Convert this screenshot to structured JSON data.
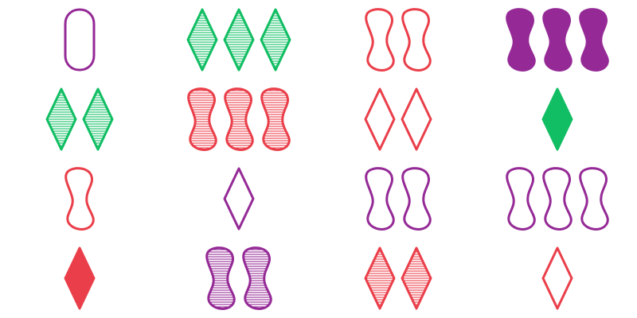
{
  "game": "set-card-grid",
  "colors": {
    "purple": "#952A96",
    "green": "#11BE63",
    "red": "#EA3F4A"
  },
  "cards": [
    {
      "count": 1,
      "shape": "oval",
      "color": "purple",
      "fill": "open"
    },
    {
      "count": 3,
      "shape": "diamond",
      "color": "green",
      "fill": "striped"
    },
    {
      "count": 2,
      "shape": "squiggle",
      "color": "red",
      "fill": "open"
    },
    {
      "count": 3,
      "shape": "squiggle",
      "color": "purple",
      "fill": "solid"
    },
    {
      "count": 2,
      "shape": "diamond",
      "color": "green",
      "fill": "striped"
    },
    {
      "count": 3,
      "shape": "squiggle",
      "color": "red",
      "fill": "striped"
    },
    {
      "count": 2,
      "shape": "diamond",
      "color": "red",
      "fill": "open"
    },
    {
      "count": 1,
      "shape": "diamond",
      "color": "green",
      "fill": "solid"
    },
    {
      "count": 1,
      "shape": "squiggle",
      "color": "red",
      "fill": "open"
    },
    {
      "count": 1,
      "shape": "diamond",
      "color": "purple",
      "fill": "open"
    },
    {
      "count": 2,
      "shape": "squiggle",
      "color": "purple",
      "fill": "open"
    },
    {
      "count": 3,
      "shape": "squiggle",
      "color": "purple",
      "fill": "open"
    },
    {
      "count": 1,
      "shape": "diamond",
      "color": "red",
      "fill": "solid"
    },
    {
      "count": 2,
      "shape": "squiggle",
      "color": "purple",
      "fill": "striped"
    },
    {
      "count": 2,
      "shape": "diamond",
      "color": "red",
      "fill": "striped"
    },
    {
      "count": 1,
      "shape": "diamond",
      "color": "red",
      "fill": "open"
    }
  ]
}
